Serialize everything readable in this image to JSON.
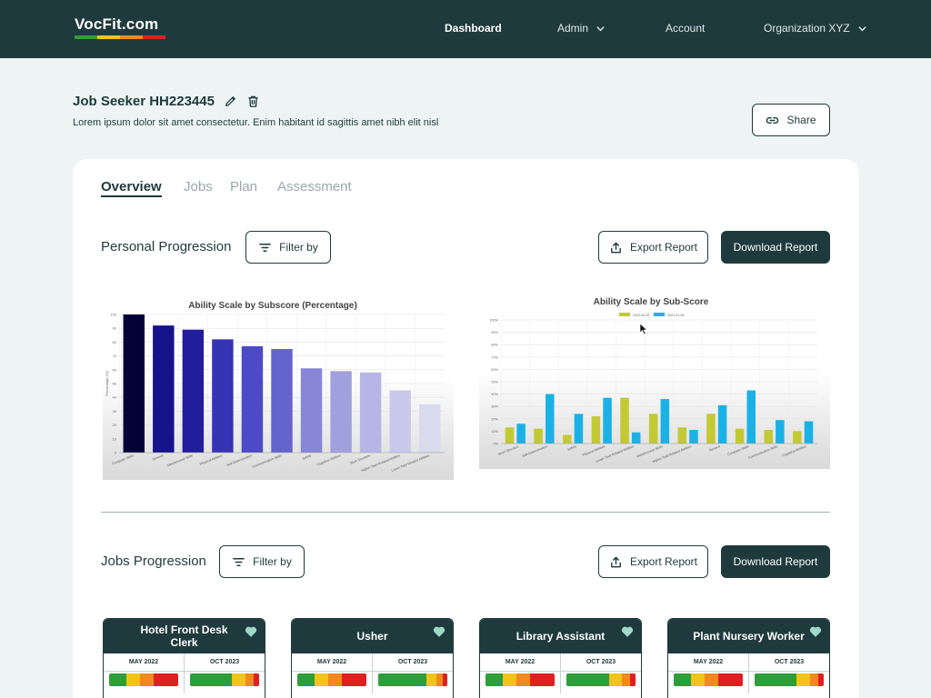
{
  "nav": {
    "logo": "VocFit.com",
    "logo_colors": [
      "#2e9e3a",
      "#f0c419",
      "#ef8a1c",
      "#e02020"
    ],
    "items": [
      {
        "label": "Dashboard",
        "active": true,
        "dropdown": false
      },
      {
        "label": "Admin",
        "active": false,
        "dropdown": true
      },
      {
        "label": "Account",
        "active": false,
        "dropdown": false
      },
      {
        "label": "Organization XYZ",
        "active": false,
        "dropdown": true
      }
    ]
  },
  "header": {
    "title": "Job Seeker HH223445",
    "description": "Lorem ipsum dolor sit amet consectetur. Enim habitant id sagittis amet nibh elit nisl",
    "share_label": "Share"
  },
  "tabs": [
    "Overview",
    "Jobs",
    "Plan",
    "Assessment"
  ],
  "personal": {
    "title": "Personal Progression",
    "filter_label": "Filter by",
    "export_label": "Export Report",
    "download_label": "Download Report"
  },
  "jobs_section": {
    "title": "Jobs Progression",
    "filter_label": "Filter by",
    "export_label": "Export Report",
    "download_label": "Download Report"
  },
  "chart_data": [
    {
      "type": "bar",
      "title": "Ability Scale by Subscore (Percentage)",
      "ylabel": "Percentage (%)",
      "ylim": [
        0,
        100
      ],
      "yticks": [
        0,
        10,
        20,
        30,
        40,
        50,
        60,
        70,
        80,
        90,
        100
      ],
      "categories": [
        "Computer Skills",
        "General",
        "Interpersonal Skills",
        "Physical Abilities",
        "Self-Determination",
        "Communication Skills",
        "Safety",
        "Cognitive Abilities",
        "Work Structure",
        "Higher Task-Related Abilities",
        "Lower Task-Related Abilities"
      ],
      "values": [
        100,
        92,
        89,
        82,
        77,
        75,
        61,
        59,
        58,
        45,
        35
      ],
      "colors": [
        "#050238",
        "#15128a",
        "#211d9c",
        "#3634b4",
        "#4c4ac6",
        "#6563ce",
        "#8786d8",
        "#a1a0df",
        "#b6b5e6",
        "#cac9ec",
        "#dadaef"
      ],
      "grid": true
    },
    {
      "type": "bar",
      "title": "Ability Scale by Sub-Score",
      "ylim": [
        0,
        100
      ],
      "yticks": [
        "0%",
        "10%",
        "20%",
        "30%",
        "40%",
        "50%",
        "60%",
        "70%",
        "80%",
        "90%",
        "100%"
      ],
      "legend_position": "top",
      "categories": [
        "Work Structure",
        "Self-Determination",
        "Safety",
        "Physical Abilities",
        "Lower Task-Related Abilities",
        "Interpersonal Skills",
        "Higher Task-Related Abilities",
        "General",
        "Computer Skills",
        "Communication Skills",
        "Cognitive Abilities"
      ],
      "series": [
        {
          "name": "2022-05-25",
          "color": "#c2c934",
          "values": [
            13,
            12,
            7,
            22,
            37,
            24,
            13,
            24,
            12,
            11,
            10
          ]
        },
        {
          "name": "2021-01-05",
          "color": "#1ab2e6",
          "values": [
            16,
            40,
            24,
            37,
            9,
            36,
            11,
            31,
            43,
            19,
            18
          ]
        }
      ],
      "grid": true
    }
  ],
  "job_cards": [
    {
      "title": "Hotel Front Desk Clerk",
      "col1_date": "MAY 2022",
      "col2_date": "OCT 2023",
      "bar1": [
        {
          "c": "#2e9e3a",
          "w": 25
        },
        {
          "c": "#f0c419",
          "w": 20
        },
        {
          "c": "#ef8a1c",
          "w": 20
        },
        {
          "c": "#e02020",
          "w": 35
        }
      ],
      "bar2": [
        {
          "c": "#2e9e3a",
          "w": 60
        },
        {
          "c": "#f0c419",
          "w": 20
        },
        {
          "c": "#ef8a1c",
          "w": 12
        },
        {
          "c": "#e02020",
          "w": 8
        }
      ]
    },
    {
      "title": "Usher",
      "col1_date": "MAY 2022",
      "col2_date": "OCT 2023",
      "bar1": [
        {
          "c": "#2e9e3a",
          "w": 25
        },
        {
          "c": "#f0c419",
          "w": 20
        },
        {
          "c": "#ef8a1c",
          "w": 20
        },
        {
          "c": "#e02020",
          "w": 35
        }
      ],
      "bar2": [
        {
          "c": "#2e9e3a",
          "w": 70
        },
        {
          "c": "#f0c419",
          "w": 14
        },
        {
          "c": "#ef8a1c",
          "w": 10
        },
        {
          "c": "#e02020",
          "w": 6
        }
      ]
    },
    {
      "title": "Library Assistant",
      "col1_date": "MAY 2022",
      "col2_date": "OCT 2023",
      "bar1": [
        {
          "c": "#2e9e3a",
          "w": 25
        },
        {
          "c": "#f0c419",
          "w": 20
        },
        {
          "c": "#ef8a1c",
          "w": 20
        },
        {
          "c": "#e02020",
          "w": 35
        }
      ],
      "bar2": [
        {
          "c": "#2e9e3a",
          "w": 62
        },
        {
          "c": "#f0c419",
          "w": 18
        },
        {
          "c": "#ef8a1c",
          "w": 12
        },
        {
          "c": "#e02020",
          "w": 8
        }
      ]
    },
    {
      "title": "Plant Nursery Worker",
      "col1_date": "MAY 2022",
      "col2_date": "OCT 2023",
      "bar1": [
        {
          "c": "#2e9e3a",
          "w": 25
        },
        {
          "c": "#f0c419",
          "w": 20
        },
        {
          "c": "#ef8a1c",
          "w": 20
        },
        {
          "c": "#e02020",
          "w": 35
        }
      ],
      "bar2": [
        {
          "c": "#2e9e3a",
          "w": 60
        },
        {
          "c": "#f0c419",
          "w": 20
        },
        {
          "c": "#ef8a1c",
          "w": 12
        },
        {
          "c": "#e02020",
          "w": 8
        }
      ]
    }
  ]
}
